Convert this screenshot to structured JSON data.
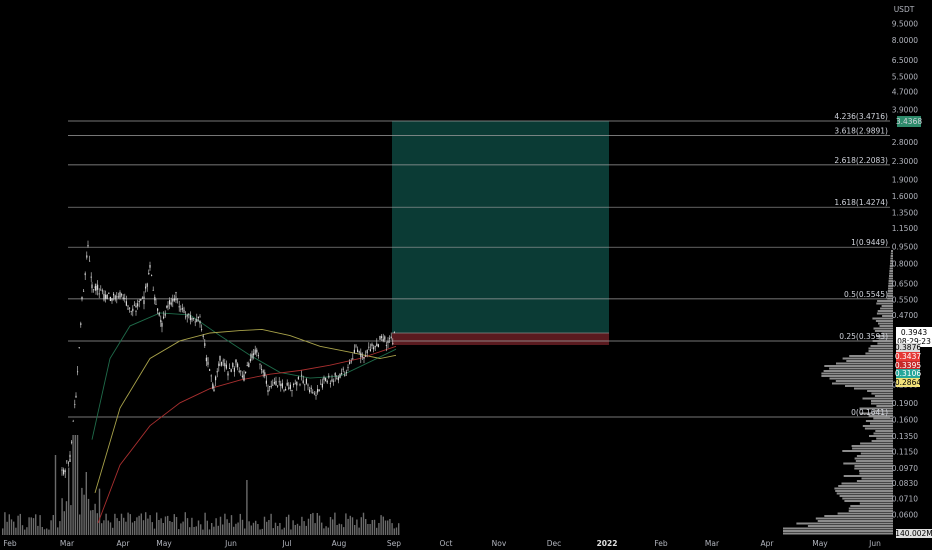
{
  "axis": {
    "currency": "USDT",
    "y_ticks": [
      "9.5000",
      "8.0000",
      "6.5000",
      "5.5000",
      "4.7000",
      "3.9000",
      "2.8000",
      "2.3000",
      "1.9000",
      "1.6000",
      "1.3500",
      "1.1500",
      "0.9500",
      "0.8000",
      "0.6500",
      "0.5500",
      "0.4700",
      "0.2300",
      "0.1900",
      "0.1600",
      "0.1350",
      "0.1150",
      "0.0970",
      "0.0830",
      "0.0710",
      "0.0600"
    ],
    "x_labels": [
      "Feb",
      "Mar",
      "Apr",
      "May",
      "Jun",
      "Jul",
      "Aug",
      "Sep",
      "Oct",
      "Nov",
      "Dec",
      "2022",
      "Feb",
      "Mar",
      "Apr",
      "May",
      "Jun"
    ],
    "x_bold": "2022"
  },
  "badges": {
    "price": "0.3943",
    "countdown": "08:29:23",
    "target": "3.4368",
    "b1": "0.3876",
    "b2": "0.3437",
    "b3": "0.3395",
    "b4": "0.3106",
    "b5": "0.2864",
    "volume": "140.002M"
  },
  "fib_levels": [
    {
      "label": "4.236(3.4716)",
      "price": 3.4716
    },
    {
      "label": "3.618(2.9891)",
      "price": 2.9891
    },
    {
      "label": "2.618(2.2083)",
      "price": 2.2083
    },
    {
      "label": "1.618(1.4274)",
      "price": 1.4274
    },
    {
      "label": "1(0.9449)",
      "price": 0.9449
    },
    {
      "label": "0.5(0.5545)",
      "price": 0.5545
    },
    {
      "label": "0.25(0.3593)",
      "price": 0.3593
    },
    {
      "label": "0(0.1641)",
      "price": 0.1641
    }
  ],
  "colors": {
    "profit_zone": "#0b3b35",
    "loss_zone": "#5a1a1f",
    "candle": "#d9d9d9",
    "ma_green": "#1f6b4a",
    "ma_yellow": "#a8a24a",
    "ma_red": "#a82f2f",
    "price_badge": "#ffffff",
    "target_badge": "#2e8b6b"
  },
  "chart_data": {
    "type": "candlestick",
    "y_scale": "log",
    "entry": 0.3593,
    "target": 3.4368,
    "stop": 0.3106,
    "position_from": "Sep",
    "position_to": "Dec"
  }
}
